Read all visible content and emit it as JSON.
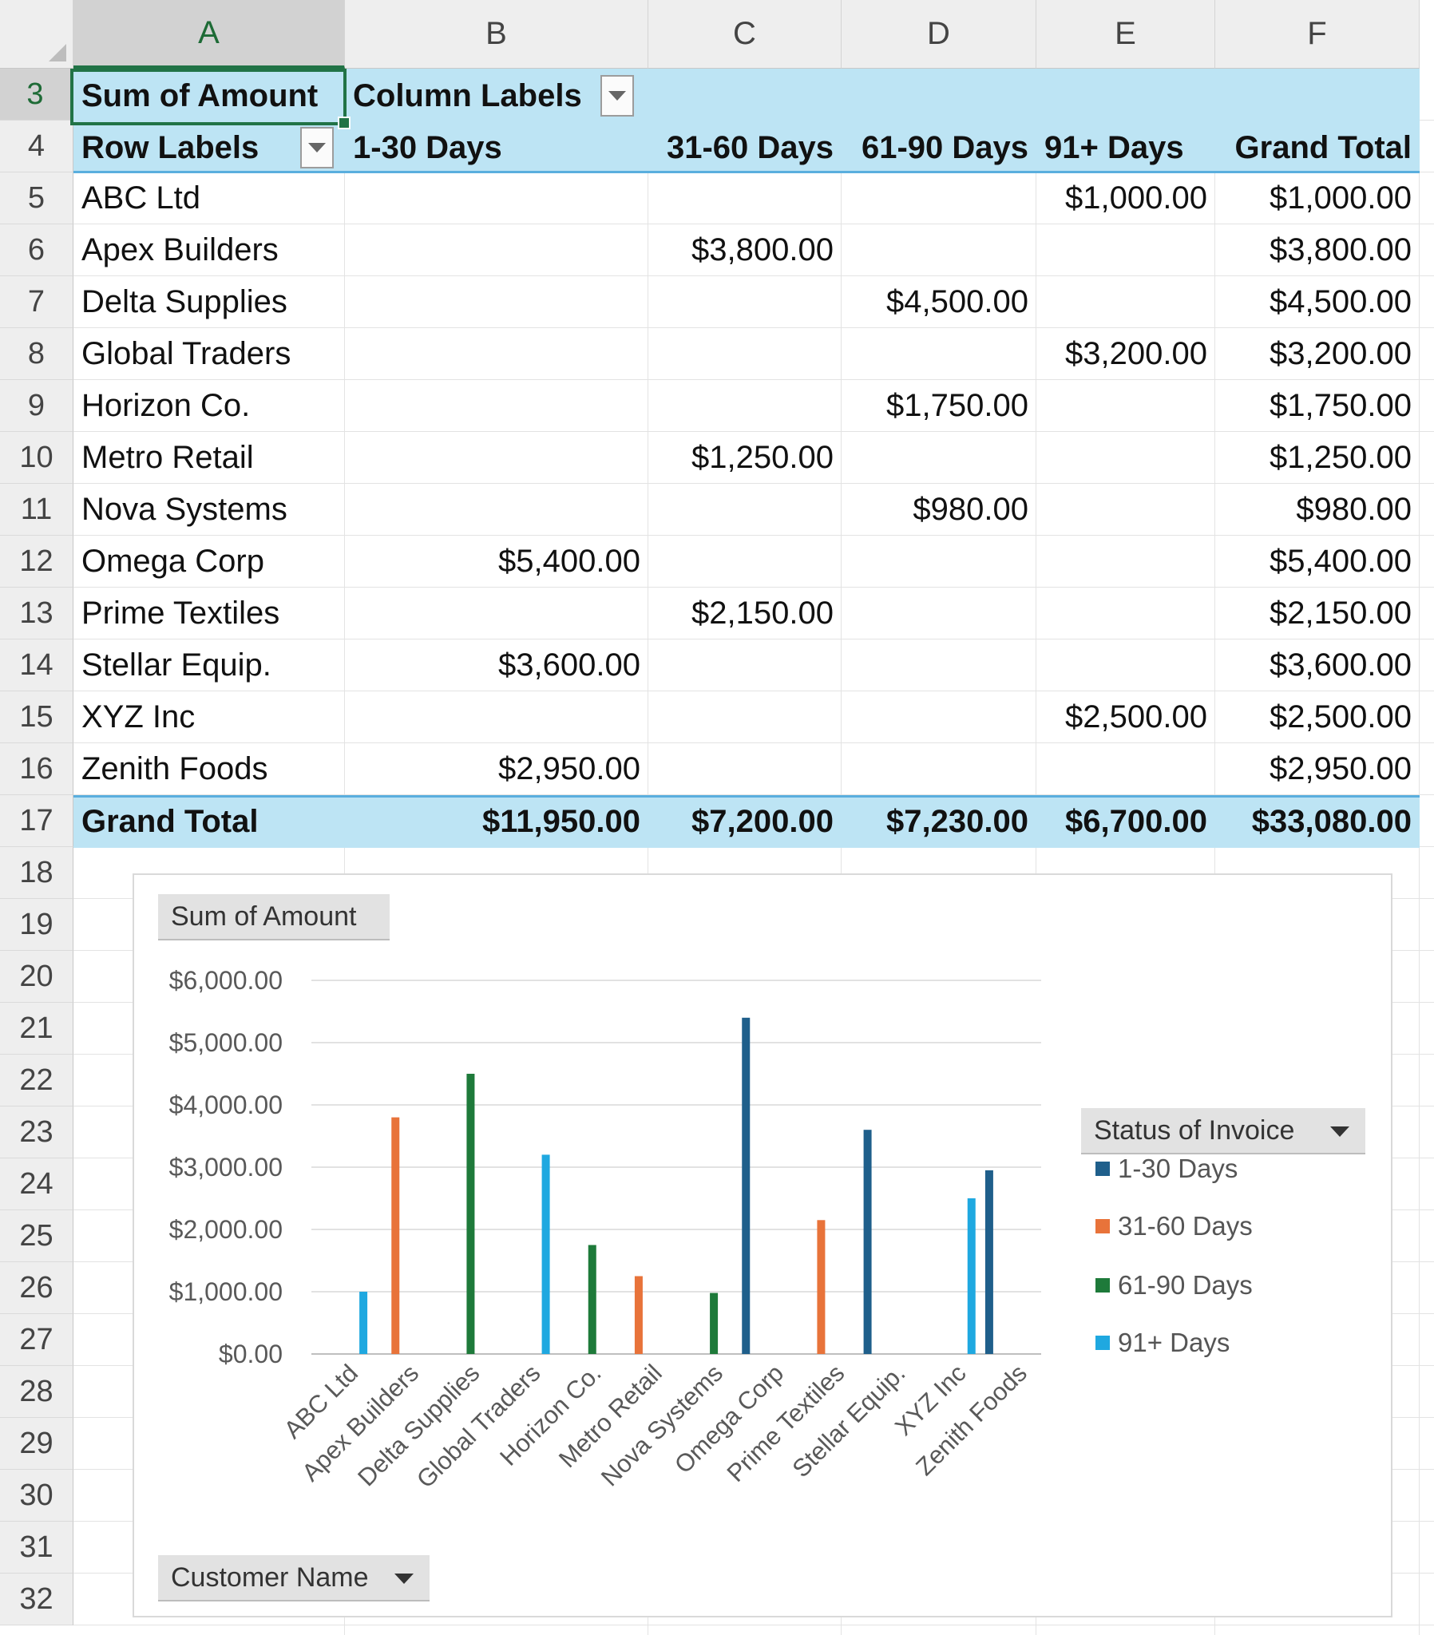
{
  "columns": [
    "A",
    "B",
    "C",
    "D",
    "E",
    "F"
  ],
  "rows": [
    "3",
    "4",
    "5",
    "6",
    "7",
    "8",
    "9",
    "10",
    "11",
    "12",
    "13",
    "14",
    "15",
    "16",
    "17",
    "18",
    "19",
    "20",
    "21",
    "22",
    "23",
    "24",
    "25",
    "26",
    "27",
    "28",
    "29",
    "30",
    "31",
    "32"
  ],
  "pivot": {
    "value_field": "Sum of Amount",
    "column_labels": "Column Labels",
    "row_labels": "Row Labels",
    "column_headers": [
      "1-30 Days",
      "31-60 Days",
      "61-90 Days",
      "91+ Days",
      "Grand Total"
    ],
    "data_rows": [
      {
        "name": "ABC Ltd",
        "d1_30": "",
        "d31_60": "",
        "d61_90": "",
        "d91": "$1,000.00",
        "total": "$1,000.00"
      },
      {
        "name": "Apex Builders",
        "d1_30": "",
        "d31_60": "$3,800.00",
        "d61_90": "",
        "d91": "",
        "total": "$3,800.00"
      },
      {
        "name": "Delta Supplies",
        "d1_30": "",
        "d31_60": "",
        "d61_90": "$4,500.00",
        "d91": "",
        "total": "$4,500.00"
      },
      {
        "name": "Global Traders",
        "d1_30": "",
        "d31_60": "",
        "d61_90": "",
        "d91": "$3,200.00",
        "total": "$3,200.00"
      },
      {
        "name": "Horizon Co.",
        "d1_30": "",
        "d31_60": "",
        "d61_90": "$1,750.00",
        "d91": "",
        "total": "$1,750.00"
      },
      {
        "name": "Metro Retail",
        "d1_30": "",
        "d31_60": "$1,250.00",
        "d61_90": "",
        "d91": "",
        "total": "$1,250.00"
      },
      {
        "name": "Nova Systems",
        "d1_30": "",
        "d31_60": "",
        "d61_90": "$980.00",
        "d91": "",
        "total": "$980.00"
      },
      {
        "name": "Omega Corp",
        "d1_30": "$5,400.00",
        "d31_60": "",
        "d61_90": "",
        "d91": "",
        "total": "$5,400.00"
      },
      {
        "name": "Prime Textiles",
        "d1_30": "",
        "d31_60": "$2,150.00",
        "d61_90": "",
        "d91": "",
        "total": "$2,150.00"
      },
      {
        "name": "Stellar Equip.",
        "d1_30": "$3,600.00",
        "d31_60": "",
        "d61_90": "",
        "d91": "",
        "total": "$3,600.00"
      },
      {
        "name": "XYZ Inc",
        "d1_30": "",
        "d31_60": "",
        "d61_90": "",
        "d91": "$2,500.00",
        "total": "$2,500.00"
      },
      {
        "name": "Zenith Foods",
        "d1_30": "$2,950.00",
        "d31_60": "",
        "d61_90": "",
        "d91": "",
        "total": "$2,950.00"
      }
    ],
    "grand_total": {
      "name": "Grand Total",
      "d1_30": "$11,950.00",
      "d31_60": "$7,200.00",
      "d61_90": "$7,230.00",
      "d91": "$6,700.00",
      "total": "$33,080.00"
    }
  },
  "chart_buttons": {
    "value_field": "Sum of Amount",
    "legend_field": "Status of Invoice",
    "axis_field": "Customer Name"
  },
  "colors": {
    "d1_30": "#1f5f8b",
    "d31_60": "#e8733a",
    "d61_90": "#1e7a3a",
    "d91": "#1fa8e0",
    "pivot_band": "#bde4f4",
    "selection": "#217346"
  },
  "chart_data": {
    "type": "bar",
    "title": "",
    "xlabel": "",
    "ylabel": "",
    "ylim": [
      0,
      6000
    ],
    "y_ticks": [
      0,
      1000,
      2000,
      3000,
      4000,
      5000,
      6000
    ],
    "y_tick_labels": [
      "$0.00",
      "$1,000.00",
      "$2,000.00",
      "$3,000.00",
      "$4,000.00",
      "$5,000.00",
      "$6,000.00"
    ],
    "grid": true,
    "legend": "right",
    "categories": [
      "ABC Ltd",
      "Apex Builders",
      "Delta Supplies",
      "Global Traders",
      "Horizon Co.",
      "Metro Retail",
      "Nova Systems",
      "Omega Corp",
      "Prime Textiles",
      "Stellar Equip.",
      "XYZ Inc",
      "Zenith Foods"
    ],
    "series": [
      {
        "name": "1-30 Days",
        "values": [
          0,
          0,
          0,
          0,
          0,
          0,
          0,
          5400,
          0,
          3600,
          0,
          2950
        ]
      },
      {
        "name": "31-60 Days",
        "values": [
          0,
          3800,
          0,
          0,
          0,
          1250,
          0,
          0,
          2150,
          0,
          0,
          0
        ]
      },
      {
        "name": "61-90 Days",
        "values": [
          0,
          0,
          4500,
          0,
          1750,
          0,
          980,
          0,
          0,
          0,
          0,
          0
        ]
      },
      {
        "name": "91+ Days",
        "values": [
          1000,
          0,
          0,
          3200,
          0,
          0,
          0,
          0,
          0,
          0,
          2500,
          0
        ]
      }
    ]
  }
}
